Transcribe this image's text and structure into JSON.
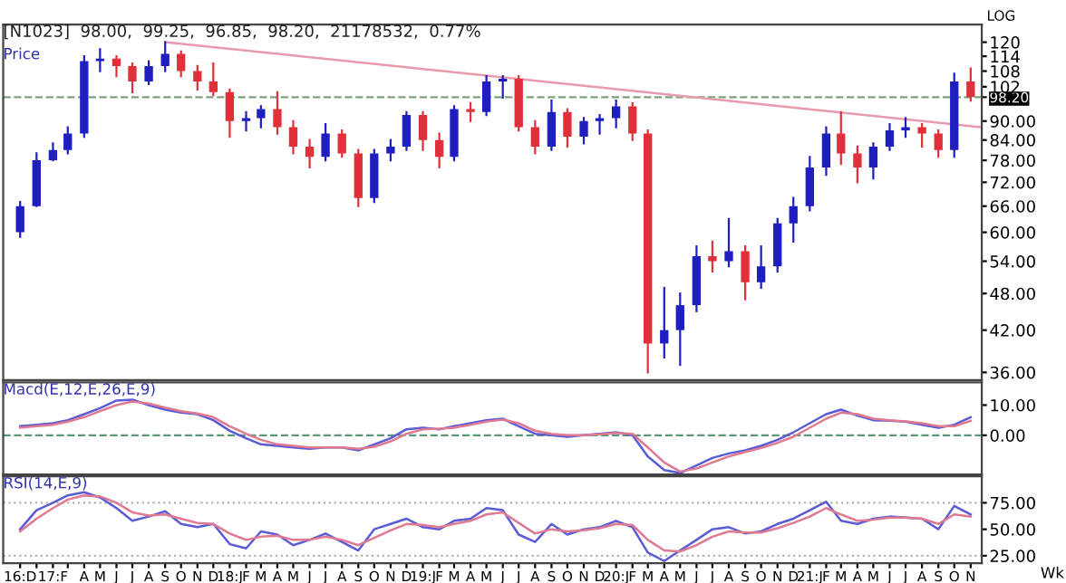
{
  "chart_data": [
    {
      "type": "candlestick",
      "title": "[N1023]  98.00,  99.25,  96.85,  98.20,  21178532,  0.77%",
      "ylabel": "Price",
      "log": "y",
      "tick_labels": "y",
      "xlim": [
        "2016-10-30",
        "2021-11-22"
      ],
      "ylim": [
        35,
        128
      ],
      "yticks": [
        {
          "value": 36,
          "label": "36.00"
        },
        {
          "value": 42,
          "label": "42.00"
        },
        {
          "value": 48,
          "label": "48.00"
        },
        {
          "value": 54,
          "label": "54.00"
        },
        {
          "value": 60,
          "label": "60.00"
        },
        {
          "value": 66,
          "label": "66.00"
        },
        {
          "value": 72,
          "label": "72.00"
        },
        {
          "value": 78,
          "label": "78.00"
        },
        {
          "value": 84,
          "label": "84.00"
        },
        {
          "value": 90,
          "label": "90.00"
        },
        {
          "value": 98.2,
          "label": "98.20"
        },
        102,
        108,
        114,
        120
      ],
      "ref_lines": [
        {
          "axis": "y",
          "value": 98.2,
          "color": "#7fa07f",
          "line_style": "dashed"
        }
      ],
      "annotations": [
        "LOG"
      ],
      "series": [
        {
          "type": "candlestick",
          "x": [
            "2016-12",
            "2017-01",
            "2017-02",
            "2017-03",
            "2017-04",
            "2017-05",
            "2017-06",
            "2017-07",
            "2017-08",
            "2017-09",
            "2017-10",
            "2017-11",
            "2017-12",
            "2018-01",
            "2018-02",
            "2018-03",
            "2018-04",
            "2018-05",
            "2018-06",
            "2018-07",
            "2018-08",
            "2018-09",
            "2018-10",
            "2018-11",
            "2018-12",
            "2019-01",
            "2019-02",
            "2019-03",
            "2019-04",
            "2019-05",
            "2019-06",
            "2019-07",
            "2019-08",
            "2019-09",
            "2019-10",
            "2019-11",
            "2019-12",
            "2020-01",
            "2020-02",
            "2020-03",
            "2020-04",
            "2020-05",
            "2020-06",
            "2020-07",
            "2020-08",
            "2020-09",
            "2020-10",
            "2020-11",
            "2020-12",
            "2021-01",
            "2021-02",
            "2021-03",
            "2021-04",
            "2021-05",
            "2021-06",
            "2021-07",
            "2021-08",
            "2021-09",
            "2021-10",
            "2021-11"
          ],
          "ohlc": [
            [
              60,
              67,
              59,
              66
            ],
            [
              66,
              80,
              66,
              78
            ],
            [
              78,
              83,
              78,
              81
            ],
            [
              81,
              88,
              80,
              86
            ],
            [
              86,
              114,
              85,
              112
            ],
            [
              112,
              117,
              108,
              113
            ],
            [
              113,
              114,
              106,
              110
            ],
            [
              110,
              111,
              100,
              104
            ],
            [
              104,
              112,
              103,
              110
            ],
            [
              110,
              120,
              108,
              115
            ],
            [
              115,
              116,
              106,
              108
            ],
            [
              108,
              110,
              101,
              104
            ],
            [
              104,
              111,
              99,
              100
            ],
            [
              100,
              101,
              85,
              90
            ],
            [
              90,
              93,
              87,
              91
            ],
            [
              91,
              95,
              88,
              94
            ],
            [
              94,
              100,
              86,
              88
            ],
            [
              88,
              90,
              80,
              82
            ],
            [
              82,
              84,
              76,
              79
            ],
            [
              79,
              89,
              78,
              86
            ],
            [
              86,
              87,
              79,
              80
            ],
            [
              80,
              81,
              66,
              68
            ],
            [
              68,
              81,
              67,
              80
            ],
            [
              80,
              84,
              78,
              82
            ],
            [
              82,
              93,
              81,
              92
            ],
            [
              92,
              93,
              81,
              84
            ],
            [
              84,
              86,
              76,
              79
            ],
            [
              79,
              95,
              78,
              94
            ],
            [
              94,
              96,
              90,
              93
            ],
            [
              93,
              106,
              92,
              104
            ],
            [
              104,
              106,
              98,
              105
            ],
            [
              105,
              106,
              87,
              88
            ],
            [
              88,
              90,
              80,
              82
            ],
            [
              82,
              97,
              81,
              93
            ],
            [
              93,
              94,
              82,
              85
            ],
            [
              85,
              91,
              83,
              90
            ],
            [
              90,
              92,
              86,
              91
            ],
            [
              91,
              97,
              88,
              95
            ],
            [
              95,
              96,
              84,
              86
            ],
            [
              86,
              87,
              36,
              40
            ],
            [
              40,
              49,
              38,
              42
            ],
            [
              42,
              48,
              37,
              46
            ],
            [
              46,
              57,
              45,
              55
            ],
            [
              55,
              58,
              52,
              54
            ],
            [
              54,
              63,
              53,
              56
            ],
            [
              56,
              57,
              47,
              50
            ],
            [
              50,
              57,
              49,
              53
            ],
            [
              53,
              63,
              52,
              62
            ],
            [
              62,
              68,
              58,
              66
            ],
            [
              66,
              79,
              65,
              76
            ],
            [
              76,
              88,
              74,
              86
            ],
            [
              86,
              93,
              77,
              80
            ],
            [
              80,
              82,
              72,
              76
            ],
            [
              76,
              83,
              73,
              82
            ],
            [
              82,
              89,
              81,
              87
            ],
            [
              87,
              91,
              85,
              88
            ],
            [
              88,
              89,
              82,
              86
            ],
            [
              86,
              87,
              79,
              81
            ],
            [
              81,
              107,
              79,
              104
            ],
            [
              104,
              109,
              97,
              98.2
            ]
          ],
          "colors": [
            "#1f1fbf",
            "#1f1fbf",
            "#1f1fbf",
            "#1f1fbf",
            "#1f1fbf",
            "#1f1fbf",
            "#e0303a",
            "#e0303a",
            "#1f1fbf",
            "#1f1fbf",
            "#e0303a",
            "#e0303a",
            "#e0303a",
            "#e0303a",
            "#1f1fbf",
            "#1f1fbf",
            "#e0303a",
            "#e0303a",
            "#e0303a",
            "#1f1fbf",
            "#e0303a",
            "#e0303a",
            "#1f1fbf",
            "#1f1fbf",
            "#1f1fbf",
            "#e0303a",
            "#e0303a",
            "#1f1fbf",
            "#e0303a",
            "#1f1fbf",
            "#1f1fbf",
            "#e0303a",
            "#e0303a",
            "#1f1fbf",
            "#e0303a",
            "#1f1fbf",
            "#1f1fbf",
            "#1f1fbf",
            "#e0303a",
            "#e0303a",
            "#1f1fbf",
            "#1f1fbf",
            "#1f1fbf",
            "#e0303a",
            "#1f1fbf",
            "#e0303a",
            "#1f1fbf",
            "#1f1fbf",
            "#1f1fbf",
            "#1f1fbf",
            "#1f1fbf",
            "#e0303a",
            "#e0303a",
            "#1f1fbf",
            "#1f1fbf",
            "#1f1fbf",
            "#e0303a",
            "#e0303a",
            "#1f1fbf",
            "#e0303a"
          ]
        },
        {
          "type": "line",
          "x": [
            "2017-09",
            "2021-11-22"
          ],
          "values": [
            120,
            88
          ],
          "color": "#e89aae"
        }
      ]
    },
    {
      "type": "line",
      "title": "Macd(E,12,E,26,E,9)",
      "tick_labels": "y",
      "xlim": [
        "2016-10-30",
        "2021-11-22"
      ],
      "ylim": [
        -13,
        17.5
      ],
      "yticks": [
        {
          "value": 0,
          "label": "0.00"
        },
        {
          "value": 10,
          "label": "10.00"
        }
      ],
      "ref_lines": [
        {
          "axis": "y",
          "value": 0,
          "color": "#5a9a7a",
          "line_style": "dashed"
        }
      ],
      "x": [
        "2016-12",
        "2017-01",
        "2017-02",
        "2017-03",
        "2017-04",
        "2017-05",
        "2017-06",
        "2017-07",
        "2017-08",
        "2017-09",
        "2017-10",
        "2017-11",
        "2017-12",
        "2018-01",
        "2018-02",
        "2018-03",
        "2018-04",
        "2018-05",
        "2018-06",
        "2018-07",
        "2018-08",
        "2018-09",
        "2018-10",
        "2018-11",
        "2018-12",
        "2019-01",
        "2019-02",
        "2019-03",
        "2019-04",
        "2019-05",
        "2019-06",
        "2019-07",
        "2019-08",
        "2019-09",
        "2019-10",
        "2019-11",
        "2019-12",
        "2020-01",
        "2020-02",
        "2020-03",
        "2020-04",
        "2020-05",
        "2020-06",
        "2020-07",
        "2020-08",
        "2020-09",
        "2020-10",
        "2020-11",
        "2020-12",
        "2021-01",
        "2021-02",
        "2021-03",
        "2021-04",
        "2021-05",
        "2021-06",
        "2021-07",
        "2021-08",
        "2021-09",
        "2021-10",
        "2021-11"
      ],
      "series": [
        {
          "color": "#5b5bd6",
          "values": [
            3,
            3.5,
            4,
            5,
            7,
            9,
            11.5,
            11.8,
            10,
            8.5,
            7.5,
            7,
            5,
            1.5,
            -1,
            -3,
            -3.5,
            -4,
            -4.5,
            -4,
            -4,
            -5,
            -3,
            -1,
            2,
            2.5,
            2,
            3,
            4,
            5,
            5.5,
            3,
            0.5,
            0,
            -0.5,
            0,
            0.5,
            1,
            0,
            -7,
            -11.5,
            -12.5,
            -10,
            -7.5,
            -6,
            -5,
            -3.5,
            -1.5,
            1,
            4,
            7,
            8.5,
            6.5,
            5,
            4.8,
            4.5,
            3.5,
            2.5,
            3.5,
            6
          ]
        },
        {
          "color": "#e07a90",
          "values": [
            2.5,
            3,
            3.5,
            4.5,
            6,
            8,
            10,
            11.2,
            10.5,
            9.2,
            8,
            7.2,
            6,
            3,
            0.5,
            -1.5,
            -3,
            -3.5,
            -4,
            -4,
            -4,
            -4.5,
            -3.8,
            -2,
            0.5,
            2,
            2.2,
            2.5,
            3.5,
            4.5,
            5.2,
            4,
            1.5,
            0.5,
            0,
            0,
            0.3,
            0.8,
            0.5,
            -4,
            -9,
            -12,
            -11,
            -9,
            -7,
            -5.5,
            -4.2,
            -2.5,
            -0.5,
            2.5,
            5.5,
            7.5,
            7,
            5.5,
            5,
            4.6,
            4,
            3,
            3,
            4.8
          ]
        }
      ]
    },
    {
      "type": "line",
      "title": "RSI(14,E,9)",
      "xlim": [
        "2016-10-30",
        "2021-11-22"
      ],
      "ylim": [
        18,
        100
      ],
      "yticks": [
        {
          "value": 25,
          "label": "25.00"
        },
        {
          "value": 50,
          "label": "50.00"
        },
        {
          "value": 75,
          "label": "75.00"
        }
      ],
      "xticks": [
        {
          "value": "2016-12",
          "label": "16:D"
        },
        {
          "value": "2017-01",
          "label": null
        },
        {
          "value": "2017-02",
          "label": "17:F"
        },
        {
          "value": "2017-03",
          "label": null
        },
        {
          "value": "2017-04",
          "label": "A"
        },
        {
          "value": "2017-05",
          "label": "M"
        },
        {
          "value": "2017-06",
          "label": "J"
        },
        {
          "value": "2017-07",
          "label": "J"
        },
        {
          "value": "2017-08",
          "label": "A"
        },
        {
          "value": "2017-09",
          "label": "S"
        },
        {
          "value": "2017-10",
          "label": "O"
        },
        {
          "value": "2017-11",
          "label": "N"
        },
        {
          "value": "2017-12",
          "label": "D"
        },
        {
          "value": "2018-01",
          "label": "18:J"
        },
        {
          "value": "2018-02",
          "label": "F"
        },
        {
          "value": "2018-03",
          "label": "M"
        },
        {
          "value": "2018-04",
          "label": "A"
        },
        {
          "value": "2018-05",
          "label": "M"
        },
        {
          "value": "2018-06",
          "label": "J"
        },
        {
          "value": "2018-07",
          "label": "J"
        },
        {
          "value": "2018-08",
          "label": "A"
        },
        {
          "value": "2018-09",
          "label": "S"
        },
        {
          "value": "2018-10",
          "label": "O"
        },
        {
          "value": "2018-11",
          "label": "N"
        },
        {
          "value": "2018-12",
          "label": "D"
        },
        {
          "value": "2019-01",
          "label": "19:J"
        },
        {
          "value": "2019-02",
          "label": "F"
        },
        {
          "value": "2019-03",
          "label": "M"
        },
        {
          "value": "2019-04",
          "label": "A"
        },
        {
          "value": "2019-05",
          "label": "M"
        },
        {
          "value": "2019-06",
          "label": "J"
        },
        {
          "value": "2019-07",
          "label": "J"
        },
        {
          "value": "2019-08",
          "label": "A"
        },
        {
          "value": "2019-09",
          "label": "S"
        },
        {
          "value": "2019-10",
          "label": "O"
        },
        {
          "value": "2019-11",
          "label": "N"
        },
        {
          "value": "2019-12",
          "label": "D"
        },
        {
          "value": "2020-01",
          "label": "20:J"
        },
        {
          "value": "2020-02",
          "label": "F"
        },
        {
          "value": "2020-03",
          "label": "M"
        },
        {
          "value": "2020-04",
          "label": "A"
        },
        {
          "value": "2020-05",
          "label": "M"
        },
        {
          "value": "2020-06",
          "label": "J"
        },
        {
          "value": "2020-07",
          "label": "J"
        },
        {
          "value": "2020-08",
          "label": "A"
        },
        {
          "value": "2020-09",
          "label": "S"
        },
        {
          "value": "2020-10",
          "label": "O"
        },
        {
          "value": "2020-11",
          "label": "N"
        },
        {
          "value": "2020-12",
          "label": "D"
        },
        {
          "value": "2021-01",
          "label": "21:J"
        },
        {
          "value": "2021-02",
          "label": "F"
        },
        {
          "value": "2021-03",
          "label": "M"
        },
        {
          "value": "2021-04",
          "label": "A"
        },
        {
          "value": "2021-05",
          "label": "M"
        },
        {
          "value": "2021-06",
          "label": "J"
        },
        {
          "value": "2021-07",
          "label": "J"
        },
        {
          "value": "2021-08",
          "label": "A"
        },
        {
          "value": "2021-09",
          "label": "S"
        },
        {
          "value": "2021-10",
          "label": "O"
        },
        {
          "value": "2021-11",
          "label": "N"
        }
      ],
      "ref_lines": [
        {
          "axis": "y",
          "value": 75,
          "color": "#b0b0b0",
          "line_style": "dotted"
        },
        {
          "axis": "y",
          "value": 25,
          "color": "#b0b0b0",
          "line_style": "dotted"
        }
      ],
      "annotations": [
        "Wk"
      ],
      "x": [
        "2016-12",
        "2017-01",
        "2017-02",
        "2017-03",
        "2017-04",
        "2017-05",
        "2017-06",
        "2017-07",
        "2017-08",
        "2017-09",
        "2017-10",
        "2017-11",
        "2017-12",
        "2018-01",
        "2018-02",
        "2018-03",
        "2018-04",
        "2018-05",
        "2018-06",
        "2018-07",
        "2018-08",
        "2018-09",
        "2018-10",
        "2018-11",
        "2018-12",
        "2019-01",
        "2019-02",
        "2019-03",
        "2019-04",
        "2019-05",
        "2019-06",
        "2019-07",
        "2019-08",
        "2019-09",
        "2019-10",
        "2019-11",
        "2019-12",
        "2020-01",
        "2020-02",
        "2020-03",
        "2020-04",
        "2020-05",
        "2020-06",
        "2020-07",
        "2020-08",
        "2020-09",
        "2020-10",
        "2020-11",
        "2020-12",
        "2021-01",
        "2021-02",
        "2021-03",
        "2021-04",
        "2021-05",
        "2021-06",
        "2021-07",
        "2021-08",
        "2021-09",
        "2021-10",
        "2021-11"
      ],
      "series": [
        {
          "color": "#5b5bd6",
          "values": [
            50,
            68,
            75,
            82,
            85,
            80,
            70,
            58,
            62,
            67,
            55,
            52,
            55,
            36,
            32,
            48,
            45,
            35,
            40,
            46,
            38,
            30,
            50,
            55,
            60,
            52,
            50,
            58,
            60,
            70,
            68,
            45,
            38,
            55,
            45,
            50,
            52,
            58,
            52,
            28,
            20,
            30,
            40,
            50,
            52,
            46,
            48,
            55,
            60,
            68,
            76,
            58,
            55,
            60,
            62,
            61,
            60,
            50,
            72,
            64
          ]
        },
        {
          "color": "#e07a90",
          "values": [
            48,
            60,
            70,
            78,
            82,
            81,
            75,
            66,
            63,
            64,
            60,
            56,
            55,
            46,
            40,
            43,
            44,
            40,
            40,
            43,
            40,
            35,
            42,
            49,
            55,
            54,
            52,
            55,
            58,
            64,
            66,
            56,
            46,
            50,
            48,
            49,
            51,
            55,
            54,
            40,
            30,
            29,
            35,
            43,
            48,
            47,
            47,
            51,
            56,
            62,
            70,
            64,
            58,
            59,
            61,
            61,
            60,
            55,
            64,
            62
          ]
        }
      ]
    }
  ]
}
